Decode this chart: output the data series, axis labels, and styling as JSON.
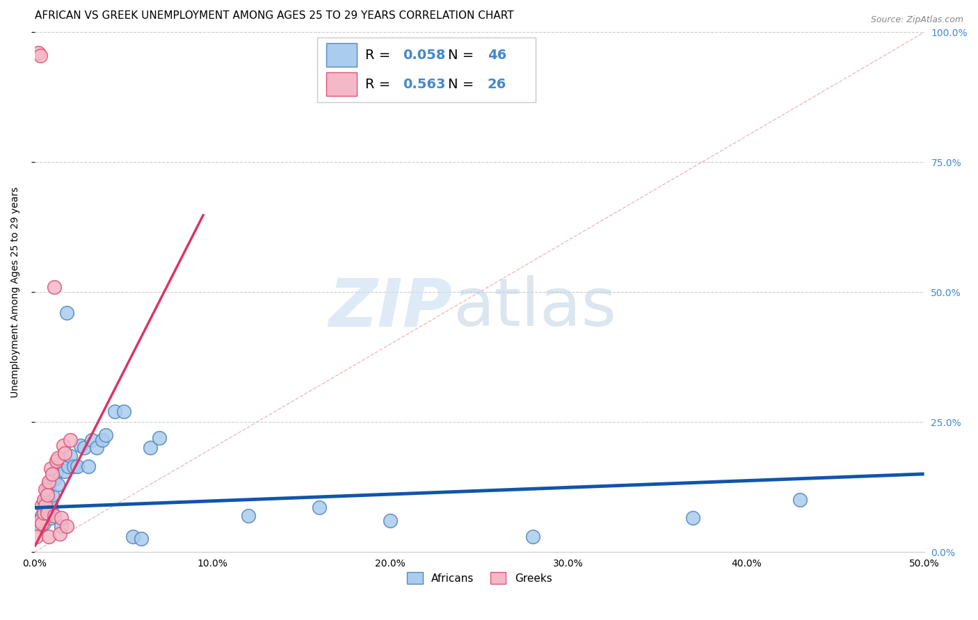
{
  "title": "AFRICAN VS GREEK UNEMPLOYMENT AMONG AGES 25 TO 29 YEARS CORRELATION CHART",
  "source": "Source: ZipAtlas.com",
  "ylabel": "Unemployment Among Ages 25 to 29 years",
  "xlim": [
    0.0,
    0.5
  ],
  "ylim": [
    0.0,
    1.0
  ],
  "xticks": [
    0.0,
    0.1,
    0.2,
    0.3,
    0.4,
    0.5
  ],
  "yticks": [
    0.0,
    0.25,
    0.5,
    0.75,
    1.0
  ],
  "xtick_labels": [
    "0.0%",
    "10.0%",
    "20.0%",
    "30.0%",
    "40.0%",
    "50.0%"
  ],
  "ytick_labels": [
    "0.0%",
    "25.0%",
    "50.0%",
    "75.0%",
    "100.0%"
  ],
  "background_color": "#ffffff",
  "grid_color": "#cccccc",
  "africans_color": "#aaccee",
  "greeks_color": "#f5b8c8",
  "africans_edge_color": "#5588bb",
  "greeks_edge_color": "#dd5577",
  "blue_line_color": "#1155aa",
  "pink_line_color": "#dd3366",
  "diagonal_color": "#f0b8c0",
  "legend_R_african": "0.058",
  "legend_N_african": "46",
  "legend_R_greek": "0.563",
  "legend_N_greek": "26",
  "right_tick_color": "#4488cc",
  "africans_x": [
    0.002,
    0.003,
    0.004,
    0.005,
    0.005,
    0.006,
    0.006,
    0.007,
    0.007,
    0.008,
    0.008,
    0.009,
    0.009,
    0.01,
    0.01,
    0.011,
    0.012,
    0.013,
    0.014,
    0.015,
    0.016,
    0.017,
    0.018,
    0.019,
    0.02,
    0.022,
    0.024,
    0.026,
    0.028,
    0.03,
    0.032,
    0.035,
    0.038,
    0.04,
    0.045,
    0.05,
    0.055,
    0.06,
    0.065,
    0.07,
    0.12,
    0.16,
    0.2,
    0.28,
    0.37,
    0.43
  ],
  "africans_y": [
    0.06,
    0.05,
    0.07,
    0.055,
    0.09,
    0.065,
    0.1,
    0.075,
    0.12,
    0.085,
    0.13,
    0.095,
    0.065,
    0.11,
    0.075,
    0.14,
    0.155,
    0.13,
    0.17,
    0.05,
    0.175,
    0.155,
    0.46,
    0.165,
    0.185,
    0.165,
    0.165,
    0.205,
    0.2,
    0.165,
    0.215,
    0.2,
    0.215,
    0.225,
    0.27,
    0.27,
    0.03,
    0.025,
    0.2,
    0.22,
    0.07,
    0.085,
    0.06,
    0.03,
    0.065,
    0.1
  ],
  "greeks_x": [
    0.001,
    0.002,
    0.003,
    0.003,
    0.004,
    0.004,
    0.005,
    0.005,
    0.006,
    0.006,
    0.007,
    0.007,
    0.008,
    0.008,
    0.009,
    0.01,
    0.011,
    0.011,
    0.012,
    0.013,
    0.014,
    0.015,
    0.016,
    0.017,
    0.018,
    0.02
  ],
  "greeks_y": [
    0.03,
    0.96,
    0.955,
    0.06,
    0.055,
    0.09,
    0.075,
    0.1,
    0.09,
    0.12,
    0.11,
    0.075,
    0.135,
    0.03,
    0.16,
    0.15,
    0.51,
    0.07,
    0.175,
    0.18,
    0.035,
    0.065,
    0.205,
    0.19,
    0.05,
    0.215
  ],
  "african_trend_x": [
    0.0,
    0.5
  ],
  "african_trend_y": [
    0.085,
    0.15
  ],
  "greek_trend_x": [
    0.0,
    0.095
  ],
  "greek_trend_y": [
    0.01,
    0.65
  ],
  "marker_size": 200,
  "title_fontsize": 11,
  "axis_label_fontsize": 10,
  "tick_fontsize": 10,
  "legend_fontsize": 14,
  "source_fontsize": 9
}
